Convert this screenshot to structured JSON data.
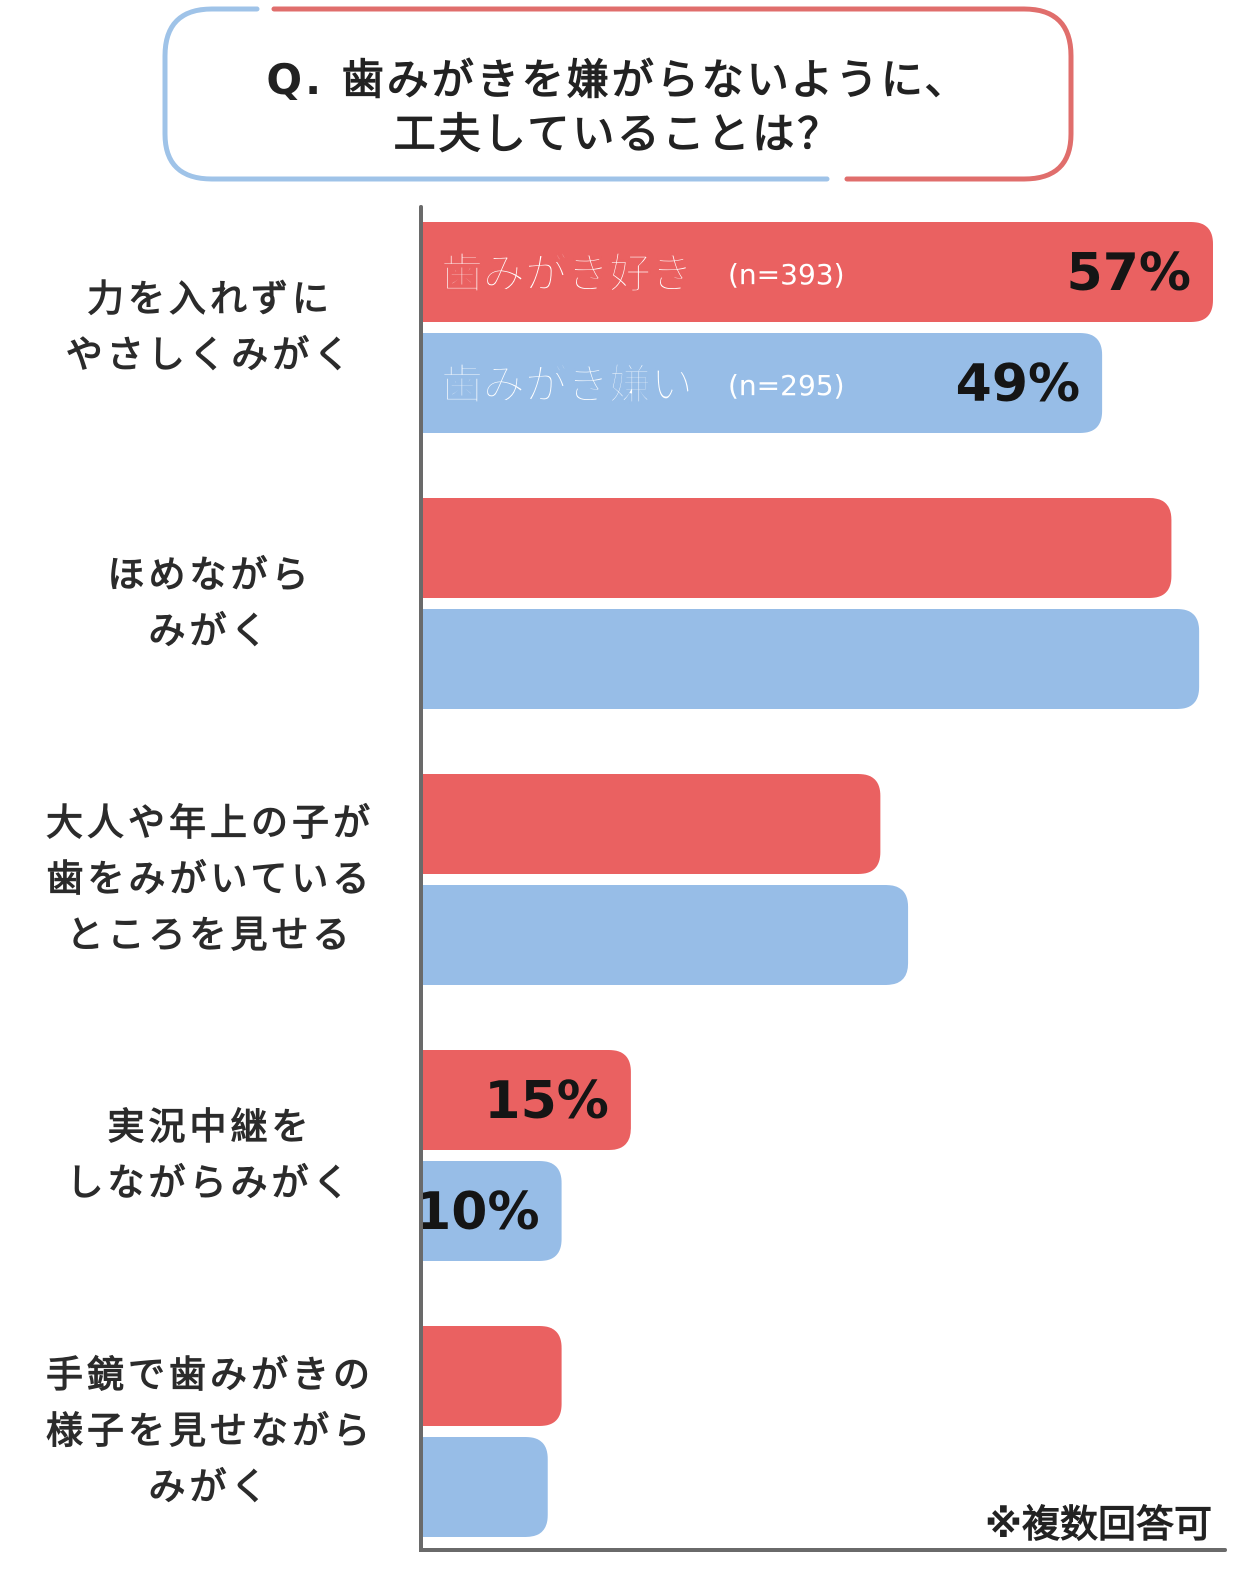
{
  "title": {
    "line1": "Q. 歯みがきを嫌がらないように、",
    "line2": "工夫していることは？"
  },
  "colors": {
    "like": "#ea6161",
    "dislike": "#97bde7",
    "box_left": "#9fc3e8",
    "box_right": "#e06e6c",
    "axis": "#6a6a6a"
  },
  "note": "※複数回答可",
  "chart_data": {
    "type": "bar",
    "orientation": "horizontal",
    "categories": [
      [
        "力を入れずに",
        "やさしくみがく"
      ],
      [
        "ほめながら",
        "みがく"
      ],
      [
        "大人や年上の子が",
        "歯をみがいている",
        "ところを見せる"
      ],
      [
        "実況中継を",
        "しながらみがく"
      ],
      [
        "手鏡で歯みがきの",
        "様子を見せながら",
        "みがく"
      ]
    ],
    "series": [
      {
        "name": "歯みがき好き",
        "n_label": "(n=393)",
        "key": "like",
        "values": [
          57,
          54,
          33,
          15,
          10
        ],
        "value_labels": [
          "57%",
          "",
          "",
          "15%",
          ""
        ]
      },
      {
        "name": "歯みがき嫌い",
        "n_label": "(n=295)",
        "key": "dislike",
        "values": [
          49,
          56,
          35,
          10,
          9
        ],
        "value_labels": [
          "49%",
          "",
          "",
          "10%",
          ""
        ]
      }
    ],
    "xlim": [
      0,
      57
    ]
  }
}
